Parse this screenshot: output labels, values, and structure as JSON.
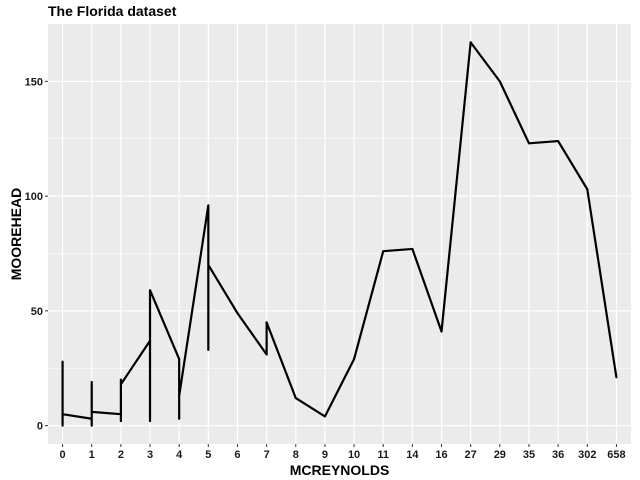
{
  "chart_data": {
    "type": "line",
    "title": "The Florida dataset",
    "xlabel": "MCREYNOLDS",
    "ylabel": "MOOREHEAD",
    "x_scale": "categorical",
    "categories": [
      "0",
      "1",
      "2",
      "3",
      "4",
      "5",
      "6",
      "7",
      "8",
      "9",
      "10",
      "11",
      "14",
      "16",
      "27",
      "29",
      "35",
      "36",
      "302",
      "658"
    ],
    "ylim": [
      -8,
      175
    ],
    "y_ticks": [
      0,
      50,
      100,
      150
    ],
    "grid": true,
    "legend": "none",
    "series": [
      {
        "color": "#000000",
        "points": [
          {
            "x": "0",
            "y": 28
          },
          {
            "x": "0",
            "y": 0
          },
          {
            "x": "0",
            "y": 5
          },
          {
            "x": "1",
            "y": 3
          },
          {
            "x": "1",
            "y": 19
          },
          {
            "x": "1",
            "y": 0
          },
          {
            "x": "1",
            "y": 6
          },
          {
            "x": "2",
            "y": 5
          },
          {
            "x": "2",
            "y": 2
          },
          {
            "x": "2",
            "y": 20
          },
          {
            "x": "2",
            "y": 18
          },
          {
            "x": "3",
            "y": 37
          },
          {
            "x": "3",
            "y": 2
          },
          {
            "x": "3",
            "y": 59
          },
          {
            "x": "4",
            "y": 29
          },
          {
            "x": "4",
            "y": 3
          },
          {
            "x": "4",
            "y": 13
          },
          {
            "x": "5",
            "y": 96
          },
          {
            "x": "5",
            "y": 33
          },
          {
            "x": "5",
            "y": 70
          },
          {
            "x": "6",
            "y": 49
          },
          {
            "x": "7",
            "y": 31
          },
          {
            "x": "7",
            "y": 45
          },
          {
            "x": "8",
            "y": 12
          },
          {
            "x": "9",
            "y": 4
          },
          {
            "x": "10",
            "y": 29
          },
          {
            "x": "11",
            "y": 76
          },
          {
            "x": "14",
            "y": 77
          },
          {
            "x": "16",
            "y": 41
          },
          {
            "x": "27",
            "y": 167
          },
          {
            "x": "29",
            "y": 150
          },
          {
            "x": "35",
            "y": 123
          },
          {
            "x": "36",
            "y": 124
          },
          {
            "x": "302",
            "y": 103
          },
          {
            "x": "658",
            "y": 21
          }
        ]
      }
    ]
  }
}
